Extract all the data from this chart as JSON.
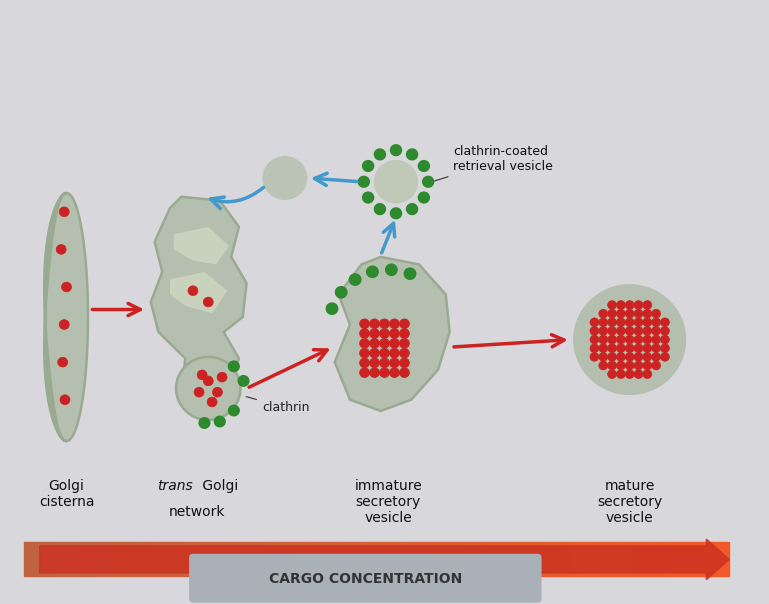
{
  "background_color": "#d8d8dc",
  "golgi_color": "#b5bfb0",
  "golgi_stroke": "#9aaa90",
  "green_color": "#2d8a2d",
  "red_dot_color": "#cc2222",
  "red_dot_edge": "#aa1111",
  "red_arrow_color": "#cc2222",
  "blue_arrow_color": "#4499cc",
  "text_color": "#111111",
  "cargo_bar_color": "#c0a090",
  "cargo_text_color": "#333333",
  "cargo_bg": "#aab0b8",
  "title": "CARGO CONCENTRATION",
  "labels": [
    "Golgi\ncisterna",
    "trans Golgi\nnetwork",
    "immature\nsecretory\nvesicle",
    "mature\nsecretory\nvesicle"
  ],
  "label_italic": [
    false,
    true,
    false,
    false
  ],
  "clathrin_label": "clathrin",
  "retrieval_label": "clathrin-coated\nretrieval vesicle"
}
